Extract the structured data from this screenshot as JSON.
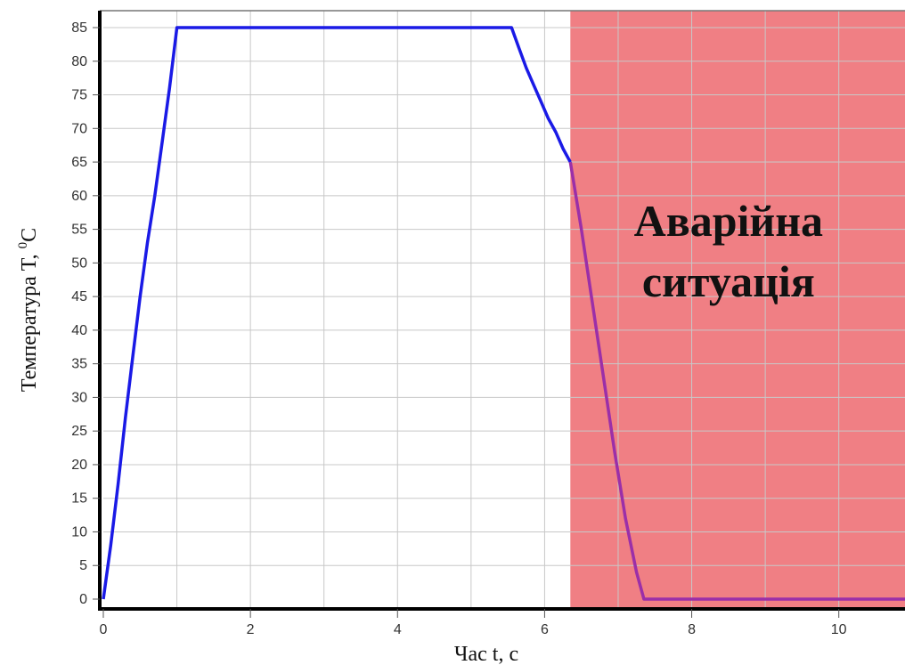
{
  "chart_data": {
    "type": "line",
    "xlabel": "Час t, с",
    "ylabel_prefix": "Температура T, ",
    "ylabel_sup": "0",
    "ylabel_suffix": "C",
    "xlim": [
      0,
      10.9
    ],
    "ylim": [
      0,
      85
    ],
    "x_ticks": [
      0,
      2,
      4,
      6,
      8,
      10
    ],
    "y_ticks": [
      0,
      5,
      10,
      15,
      20,
      25,
      30,
      35,
      40,
      45,
      50,
      55,
      60,
      65,
      70,
      75,
      80,
      85
    ],
    "grid": true,
    "series": [
      {
        "color": "#1a1ae6",
        "points": [
          [
            0,
            0
          ],
          [
            0.1,
            8
          ],
          [
            0.2,
            17
          ],
          [
            0.3,
            27
          ],
          [
            0.4,
            36
          ],
          [
            0.5,
            45
          ],
          [
            0.6,
            53
          ],
          [
            0.7,
            60
          ],
          [
            0.8,
            68
          ],
          [
            0.9,
            76
          ],
          [
            1.0,
            85
          ],
          [
            5.55,
            85
          ],
          [
            5.65,
            82
          ],
          [
            5.75,
            79
          ],
          [
            5.85,
            76.5
          ],
          [
            5.95,
            74
          ],
          [
            6.05,
            71.5
          ],
          [
            6.15,
            69.5
          ],
          [
            6.25,
            67
          ],
          [
            6.35,
            65
          ]
        ]
      },
      {
        "color": "#9b2fa8",
        "points": [
          [
            6.35,
            65
          ],
          [
            6.5,
            55
          ],
          [
            6.65,
            44
          ],
          [
            6.8,
            33
          ],
          [
            6.95,
            22
          ],
          [
            7.1,
            12
          ],
          [
            7.25,
            4
          ],
          [
            7.35,
            0
          ],
          [
            10.9,
            0
          ]
        ]
      }
    ],
    "shaded_region": {
      "x_from": 6.35,
      "x_to": 10.9,
      "color": "#f07f84"
    },
    "annotation_lines": [
      "Аварійна",
      "ситуація"
    ],
    "annotation_x": 8.5,
    "annotation_y": [
      54,
      45
    ]
  }
}
